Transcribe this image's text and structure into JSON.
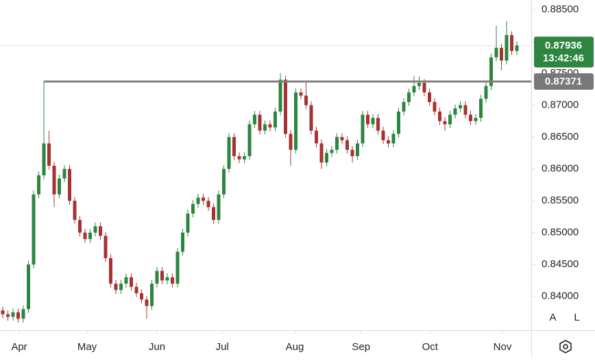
{
  "chart_data": {
    "type": "candlestick",
    "categories": [
      null,
      null,
      null,
      null,
      null,
      null,
      null,
      null,
      null,
      null,
      null,
      null,
      null,
      null,
      null,
      null,
      null,
      null,
      null,
      null,
      null,
      null,
      null,
      null,
      null,
      null,
      null,
      null,
      null,
      null,
      null,
      null,
      null,
      null,
      null,
      null,
      null,
      null,
      null,
      null,
      null,
      null,
      null,
      null,
      null,
      null,
      null,
      null,
      null,
      null,
      null,
      null,
      null,
      null,
      null,
      null,
      null,
      null,
      null,
      null,
      null,
      null,
      null,
      null,
      null,
      null,
      null,
      null,
      null,
      null,
      null,
      null,
      null,
      null,
      null,
      null,
      null,
      null,
      null,
      null,
      null,
      null,
      null,
      null,
      null,
      null,
      null,
      null,
      null,
      null,
      null,
      null,
      null,
      null,
      null,
      null,
      null,
      null,
      null,
      null,
      null
    ],
    "open": [
      0.8378,
      0.8372,
      0.8368,
      0.8375,
      0.8365,
      0.838,
      0.845,
      0.856,
      0.859,
      0.864,
      0.8605,
      0.856,
      0.8585,
      0.86,
      0.855,
      0.852,
      0.85,
      0.849,
      0.85,
      0.851,
      0.8495,
      0.846,
      0.842,
      0.841,
      0.842,
      0.843,
      0.8415,
      0.8405,
      0.8395,
      0.8385,
      0.842,
      0.844,
      0.8425,
      0.843,
      0.842,
      0.847,
      0.85,
      0.853,
      0.8545,
      0.8555,
      0.855,
      0.854,
      0.852,
      0.856,
      0.86,
      0.865,
      0.862,
      0.8615,
      0.862,
      0.867,
      0.8685,
      0.866,
      0.867,
      0.8665,
      0.869,
      0.874,
      0.8655,
      0.863,
      0.872,
      0.8715,
      0.87,
      0.866,
      0.864,
      0.861,
      0.8625,
      0.863,
      0.865,
      0.8645,
      0.863,
      0.862,
      0.864,
      0.8685,
      0.867,
      0.868,
      0.866,
      0.8645,
      0.864,
      0.8655,
      0.869,
      0.8705,
      0.872,
      0.873,
      0.8735,
      0.872,
      0.8705,
      0.869,
      0.8675,
      0.867,
      0.8685,
      0.8695,
      0.87,
      0.8685,
      0.8675,
      0.868,
      0.871,
      0.873,
      0.8775,
      0.879,
      0.877,
      0.881,
      0.8785
    ],
    "high": [
      0.8384,
      0.8378,
      0.8381,
      0.8381,
      0.8386,
      0.8456,
      0.8566,
      0.8596,
      0.8737,
      0.866,
      0.8611,
      0.8591,
      0.8606,
      0.8606,
      0.8556,
      0.8526,
      0.8506,
      0.8506,
      0.8516,
      0.8516,
      0.8501,
      0.8466,
      0.8426,
      0.8426,
      0.8436,
      0.8436,
      0.8421,
      0.8411,
      0.8401,
      0.8426,
      0.8446,
      0.8446,
      0.8436,
      0.8436,
      0.8476,
      0.8506,
      0.8536,
      0.8551,
      0.8561,
      0.8561,
      0.8556,
      0.8546,
      0.8566,
      0.8606,
      0.8656,
      0.8656,
      0.8626,
      0.8626,
      0.8676,
      0.8691,
      0.8691,
      0.8676,
      0.8676,
      0.8696,
      0.875,
      0.8746,
      0.8661,
      0.8726,
      0.8726,
      0.8735,
      0.8706,
      0.8666,
      0.8646,
      0.8631,
      0.8636,
      0.8656,
      0.8656,
      0.8651,
      0.8636,
      0.8646,
      0.8691,
      0.8691,
      0.8686,
      0.8686,
      0.8666,
      0.8651,
      0.8661,
      0.8696,
      0.8711,
      0.8726,
      0.8746,
      0.8745,
      0.8741,
      0.8726,
      0.8711,
      0.8696,
      0.8681,
      0.8691,
      0.8701,
      0.8706,
      0.8706,
      0.8691,
      0.8686,
      0.8716,
      0.8736,
      0.8781,
      0.8825,
      0.8796,
      0.8832,
      0.8816,
      0.88
    ],
    "low": [
      0.8366,
      0.8362,
      0.8362,
      0.8359,
      0.8359,
      0.8374,
      0.8444,
      0.8554,
      0.8584,
      0.8599,
      0.854,
      0.8554,
      0.8579,
      0.8544,
      0.8514,
      0.8494,
      0.8484,
      0.8484,
      0.8494,
      0.8489,
      0.8454,
      0.8414,
      0.8404,
      0.8404,
      0.8414,
      0.8409,
      0.8399,
      0.8389,
      0.8365,
      0.8379,
      0.8414,
      0.8419,
      0.8419,
      0.8414,
      0.8414,
      0.8464,
      0.8494,
      0.8524,
      0.8539,
      0.8544,
      0.8534,
      0.8514,
      0.8514,
      0.8554,
      0.8594,
      0.8614,
      0.8609,
      0.8609,
      0.8614,
      0.8664,
      0.8654,
      0.8654,
      0.8659,
      0.8659,
      0.8684,
      0.8649,
      0.8605,
      0.8624,
      0.8709,
      0.8694,
      0.8654,
      0.8634,
      0.86,
      0.8604,
      0.8619,
      0.8624,
      0.8639,
      0.8624,
      0.861,
      0.8614,
      0.8634,
      0.8664,
      0.8664,
      0.8654,
      0.8639,
      0.8634,
      0.8634,
      0.8649,
      0.8684,
      0.8699,
      0.8714,
      0.8724,
      0.8714,
      0.8699,
      0.8684,
      0.8669,
      0.866,
      0.8664,
      0.8679,
      0.8689,
      0.8679,
      0.8669,
      0.8669,
      0.8674,
      0.8704,
      0.8724,
      0.8769,
      0.8755,
      0.8764,
      0.8779,
      0.8779
    ],
    "close": [
      0.8372,
      0.8368,
      0.8375,
      0.8365,
      0.838,
      0.845,
      0.856,
      0.859,
      0.864,
      0.8605,
      0.856,
      0.8585,
      0.86,
      0.855,
      0.852,
      0.85,
      0.849,
      0.85,
      0.851,
      0.8495,
      0.846,
      0.842,
      0.841,
      0.842,
      0.843,
      0.8415,
      0.8405,
      0.8395,
      0.8385,
      0.842,
      0.844,
      0.8425,
      0.843,
      0.842,
      0.847,
      0.85,
      0.853,
      0.8545,
      0.8555,
      0.855,
      0.854,
      0.852,
      0.856,
      0.86,
      0.865,
      0.862,
      0.8615,
      0.862,
      0.867,
      0.8685,
      0.866,
      0.867,
      0.8665,
      0.869,
      0.874,
      0.8655,
      0.863,
      0.872,
      0.8715,
      0.87,
      0.866,
      0.864,
      0.861,
      0.8625,
      0.863,
      0.865,
      0.8645,
      0.863,
      0.862,
      0.864,
      0.8685,
      0.867,
      0.868,
      0.866,
      0.8645,
      0.864,
      0.8655,
      0.869,
      0.8705,
      0.872,
      0.873,
      0.8735,
      0.872,
      0.8705,
      0.869,
      0.8675,
      0.867,
      0.8685,
      0.8695,
      0.87,
      0.8685,
      0.8675,
      0.868,
      0.871,
      0.873,
      0.8775,
      0.879,
      0.877,
      0.881,
      0.8785,
      0.87936
    ],
    "up_color": "#2e8540",
    "down_color": "#a83232",
    "price_line": 0.87371,
    "countdown": "13:42:46",
    "ylim": [
      0.8347,
      0.8865
    ],
    "yticks": [
      {
        "value": 0.84,
        "label": "0.84000"
      },
      {
        "value": 0.845,
        "label": "0.84500"
      },
      {
        "value": 0.85,
        "label": "0.85000"
      },
      {
        "value": 0.855,
        "label": "0.85500"
      },
      {
        "value": 0.86,
        "label": "0.86000"
      },
      {
        "value": 0.865,
        "label": "0.86500"
      },
      {
        "value": 0.87,
        "label": "0.87000"
      },
      {
        "value": 0.875,
        "label": "0.87500"
      },
      {
        "value": 0.88,
        "label": "0.88000"
      },
      {
        "value": 0.885,
        "label": "0.88500"
      }
    ],
    "xticks": [
      {
        "value": 3.2,
        "label": "Apr"
      },
      {
        "value": 16.4,
        "label": "May"
      },
      {
        "value": 30,
        "label": "Jun"
      },
      {
        "value": 42.7,
        "label": "Jul"
      },
      {
        "value": 56.8,
        "label": "Aug"
      },
      {
        "value": 69.7,
        "label": "Sep"
      },
      {
        "value": 83.1,
        "label": "Oct"
      },
      {
        "value": 97.2,
        "label": "Nov"
      }
    ]
  },
  "controls": [
    "A",
    "L"
  ]
}
